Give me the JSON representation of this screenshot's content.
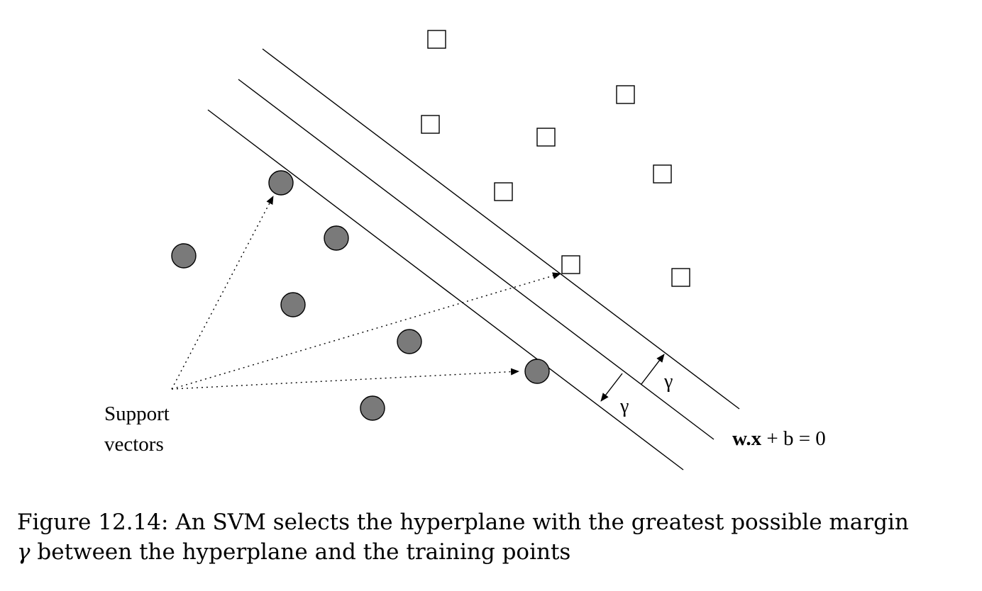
{
  "diagram": {
    "hyperplane_label_bold": "w.x",
    "hyperplane_label_rest": " + b = 0",
    "margin_label_upper": "γ",
    "margin_label_lower": "γ",
    "support_label_line1": "Support",
    "support_label_line2": "vectors",
    "colors": {
      "circle_fill": "#7a7a7a",
      "line": "#000000",
      "square_fill": "#ffffff"
    }
  },
  "caption": {
    "figure_number": "Figure 12.14:",
    "line1": "An SVM selects the hyperplane with the greatest possible margin",
    "line2_symbol": "γ",
    "line2": "between the hyperplane and the training points"
  }
}
